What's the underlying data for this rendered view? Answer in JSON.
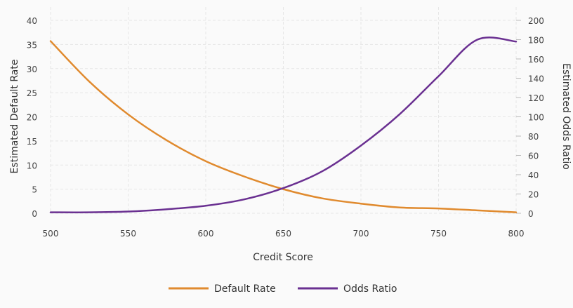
{
  "chart_data": {
    "type": "line",
    "xlabel": "Credit Score",
    "ylabel": "Estimated Default Rate",
    "y2label": "Estimated Odds Ratio",
    "xlim": [
      500,
      800
    ],
    "ylim": [
      0,
      40
    ],
    "y2lim": [
      0,
      200
    ],
    "x_ticks": [
      500,
      550,
      600,
      650,
      700,
      750,
      800
    ],
    "y_ticks": [
      0,
      5,
      10,
      15,
      20,
      25,
      30,
      35,
      40
    ],
    "y2_ticks": [
      0,
      20,
      40,
      60,
      80,
      100,
      120,
      140,
      160,
      180,
      200
    ],
    "grid": true,
    "legend_position": "bottom",
    "x": [
      500,
      525,
      550,
      575,
      600,
      625,
      650,
      675,
      700,
      725,
      750,
      775,
      800
    ],
    "series": [
      {
        "name": "Default Rate",
        "axis": "left",
        "color": "#e08a2e",
        "values": [
          35.7,
          27.3,
          20.5,
          15.1,
          10.8,
          7.6,
          5.0,
          3.1,
          2.0,
          1.2,
          1.0,
          0.6,
          0.2
        ]
      },
      {
        "name": "Odds Ratio",
        "axis": "right",
        "color": "#6a3091",
        "values": [
          1,
          1,
          1.8,
          4.2,
          7.8,
          14.5,
          26.1,
          43.5,
          70.2,
          102.8,
          142.1,
          180,
          178
        ]
      }
    ]
  }
}
